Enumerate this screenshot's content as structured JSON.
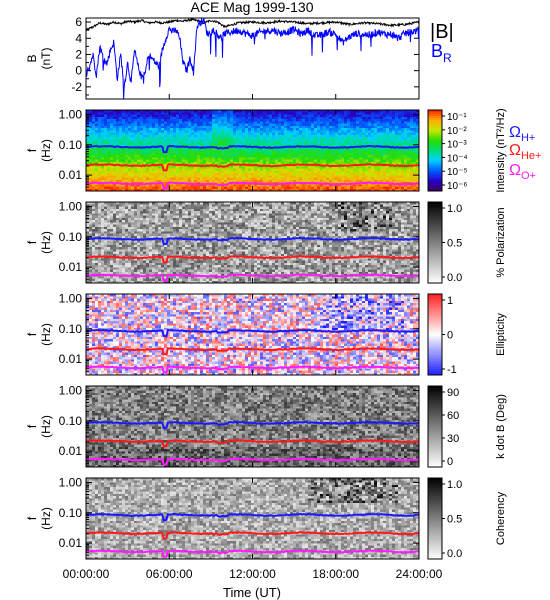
{
  "title": "ACE Mag 1999-130",
  "xlabel": "Time (UT)",
  "x_ticks": [
    "00:00:00",
    "06:00:00",
    "12:00:00",
    "18:00:00",
    "24:00:00"
  ],
  "freq_ticks": [
    "1.00",
    "0.10",
    "0.01"
  ],
  "freq_axis_label": {
    "var": "f",
    "unit": "(Hz)"
  },
  "gyro_legend": [
    {
      "main": "Ω",
      "sub": "H+",
      "color": "#1a1aff"
    },
    {
      "main": "Ω",
      "sub": "He+",
      "color": "#ff1a1a"
    },
    {
      "main": "Ω",
      "sub": "O+",
      "color": "#ff1aff"
    }
  ],
  "chart_data": [
    {
      "type": "line",
      "panel": "B",
      "ylabel": {
        "var": "B",
        "unit": "(nT)"
      },
      "ylim": [
        -3.5,
        6.5
      ],
      "yticks": [
        "6",
        "4",
        "2",
        "0",
        "-2"
      ],
      "xlim_hours": [
        0,
        24
      ],
      "legend": [
        {
          "label": "|B|",
          "color": "#000000"
        },
        {
          "label": "B",
          "sub": "R",
          "color": "#0000ff"
        }
      ],
      "series": [
        {
          "name": "|B|",
          "color": "#000000",
          "x": [
            0,
            0.5,
            1,
            1.5,
            2,
            2.5,
            3,
            3.5,
            4,
            4.5,
            5,
            5.5,
            6,
            6.5,
            7,
            7.5,
            8,
            8.5,
            9,
            9.5,
            10,
            11,
            12,
            13,
            14,
            15,
            16,
            17,
            18,
            19,
            20,
            21,
            22,
            23,
            24
          ],
          "y": [
            5.0,
            5.4,
            5.9,
            5.7,
            6.0,
            5.8,
            6.1,
            6.0,
            6.2,
            5.9,
            6.0,
            5.9,
            6.0,
            6.2,
            6.1,
            6.3,
            6.2,
            5.9,
            6.2,
            6.0,
            5.4,
            5.9,
            6.0,
            5.9,
            6.1,
            6.0,
            5.8,
            5.9,
            6.0,
            5.7,
            5.9,
            5.8,
            5.6,
            5.7,
            6.0
          ]
        },
        {
          "name": "B",
          "color": "#0000ff",
          "x": [
            0,
            0.25,
            0.5,
            0.75,
            1,
            1.25,
            1.5,
            1.75,
            2,
            2.25,
            2.5,
            2.75,
            3,
            3.25,
            3.5,
            3.75,
            4,
            4.25,
            4.5,
            4.75,
            5,
            5.25,
            5.5,
            5.75,
            6,
            6.25,
            6.5,
            6.75,
            7,
            7.25,
            7.5,
            7.75,
            8,
            8.25,
            8.5,
            8.75,
            9,
            9.25,
            9.5,
            9.75,
            10,
            10.5,
            11,
            11.5,
            12,
            12.5,
            13,
            13.5,
            14,
            14.5,
            15,
            15.5,
            16,
            16.5,
            17,
            17.5,
            18,
            18.5,
            19,
            19.5,
            20,
            20.5,
            21,
            21.5,
            22,
            22.5,
            23,
            23.5,
            24
          ],
          "y": [
            -0.5,
            0.5,
            2.0,
            -0.5,
            3.0,
            1.5,
            0.8,
            2.5,
            3.5,
            -1.0,
            2.0,
            -2.0,
            1.0,
            -1.5,
            2.5,
            0.5,
            -0.8,
            -0.5,
            2.0,
            1.5,
            1.0,
            0.5,
            2.5,
            4.0,
            5.2,
            4.8,
            5.0,
            4.0,
            1.0,
            0.0,
            1.5,
            0.0,
            5.5,
            6.0,
            6.2,
            4.5,
            4.8,
            5.0,
            4.5,
            4.0,
            4.6,
            4.8,
            5.0,
            4.6,
            4.3,
            4.7,
            4.9,
            5.0,
            4.6,
            4.8,
            5.1,
            4.5,
            5.0,
            4.3,
            4.4,
            4.8,
            4.5,
            3.5,
            4.2,
            4.6,
            4.5,
            4.4,
            4.8,
            4.5,
            4.5,
            4.0,
            4.6,
            4.8,
            5.0
          ]
        }
      ]
    },
    {
      "type": "heatmap",
      "panel": "Intensity",
      "colorbar_label": "Intensity (nT²/Hz)",
      "colorbar_ticks": [
        "10⁻¹",
        "10⁻²",
        "10⁻³",
        "10⁻⁴",
        "10⁻⁵",
        "10⁻⁶"
      ],
      "colormap": "rainbow",
      "value_range_log10": [
        -6,
        -1
      ]
    },
    {
      "type": "heatmap",
      "panel": "% Polarization",
      "colorbar_label": "% Polarization",
      "colorbar_ticks": [
        "1.0",
        "0.5",
        "0.0"
      ],
      "colormap": "gray"
    },
    {
      "type": "heatmap",
      "panel": "Ellipticity",
      "colorbar_label": "Ellipticity",
      "colorbar_ticks": [
        "1",
        "0",
        "-1"
      ],
      "colormap": "blue-white-red"
    },
    {
      "type": "heatmap",
      "panel": "k dot B",
      "colorbar_label": "k dot B (Deg)",
      "colorbar_ticks": [
        "90",
        "60",
        "30",
        "0"
      ],
      "colormap": "gray"
    },
    {
      "type": "heatmap",
      "panel": "Coherency",
      "colorbar_label": "Coherency",
      "colorbar_ticks": [
        "1.0",
        "0.5",
        "0.0"
      ],
      "colormap": "gray"
    }
  ]
}
